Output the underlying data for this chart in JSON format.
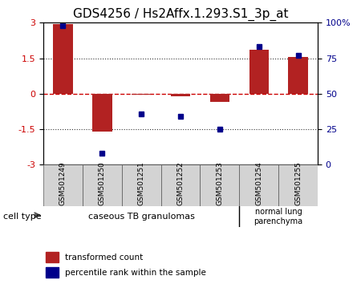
{
  "title": "GDS4256 / Hs2Affx.1.293.S1_3p_at",
  "samples": [
    "GSM501249",
    "GSM501250",
    "GSM501251",
    "GSM501252",
    "GSM501253",
    "GSM501254",
    "GSM501255"
  ],
  "transformed_count": [
    2.95,
    -1.6,
    -0.05,
    -0.1,
    -0.35,
    1.85,
    1.55
  ],
  "percentile_rank": [
    98,
    8,
    36,
    34,
    25,
    83,
    77
  ],
  "ylim_left": [
    -3,
    3
  ],
  "ylim_right": [
    0,
    100
  ],
  "yticks_left": [
    -3,
    -1.5,
    0,
    1.5,
    3
  ],
  "yticks_right": [
    0,
    25,
    50,
    75,
    100
  ],
  "yticks_right_labels": [
    "0",
    "25",
    "50",
    "75",
    "100%"
  ],
  "bar_color": "#b22222",
  "dot_color": "#00008b",
  "zero_line_color": "#cc0000",
  "dotted_line_color": "#333333",
  "group1_label": "caseous TB granulomas",
  "group2_label": "normal lung\nparenchyma",
  "group1_count": 5,
  "group2_count": 2,
  "cell_type_label": "cell type",
  "legend_bar_label": "transformed count",
  "legend_dot_label": "percentile rank within the sample",
  "group_color": "#90ee90",
  "bg_color": "#ffffff",
  "plot_bg": "#ffffff",
  "spine_color": "#000000",
  "title_fontsize": 11,
  "tick_fontsize": 8,
  "label_fontsize": 8
}
